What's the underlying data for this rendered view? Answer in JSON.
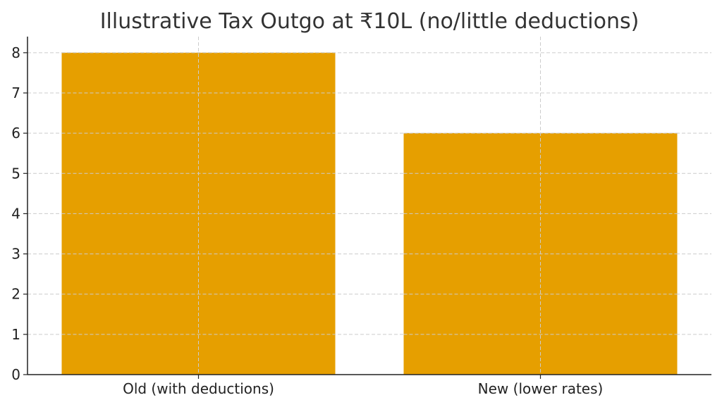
{
  "chart_data": {
    "type": "bar",
    "title": "Illustrative Tax Outgo at ₹10L (no/little deductions)",
    "xlabel": "",
    "ylabel": "",
    "categories": [
      "Old (with deductions)",
      "New (lower rates)"
    ],
    "values": [
      8,
      6
    ],
    "ylim": [
      0,
      8.4
    ],
    "yticks": [
      0,
      1,
      2,
      3,
      4,
      5,
      6,
      7,
      8
    ],
    "grid": true,
    "legend": "none",
    "bar_color": "#E69F00"
  }
}
